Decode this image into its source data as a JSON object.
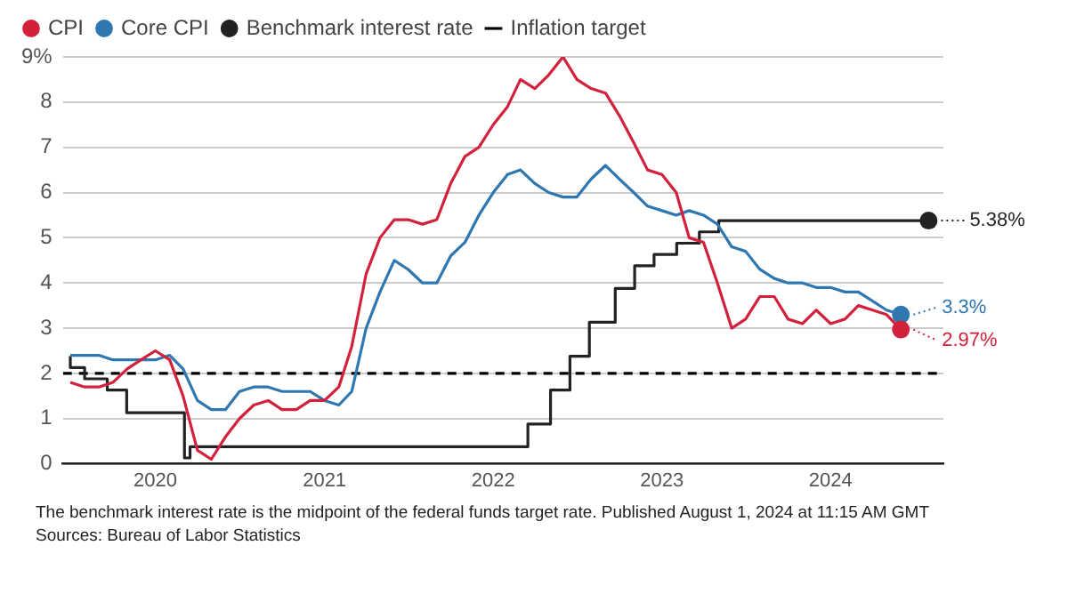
{
  "chart_data": {
    "type": "line",
    "legend": "top left",
    "grid": "y",
    "marker": "none",
    "line_style": "solid",
    "x": [
      "2019-07",
      "2019-08",
      "2019-09",
      "2019-10",
      "2019-11",
      "2019-12",
      "2020-01",
      "2020-02",
      "2020-03",
      "2020-04",
      "2020-05",
      "2020-06",
      "2020-07",
      "2020-08",
      "2020-09",
      "2020-10",
      "2020-11",
      "2020-12",
      "2021-01",
      "2021-02",
      "2021-03",
      "2021-04",
      "2021-05",
      "2021-06",
      "2021-07",
      "2021-08",
      "2021-09",
      "2021-10",
      "2021-11",
      "2021-12",
      "2022-01",
      "2022-02",
      "2022-03",
      "2022-04",
      "2022-05",
      "2022-06",
      "2022-07",
      "2022-08",
      "2022-09",
      "2022-10",
      "2022-11",
      "2022-12",
      "2023-01",
      "2023-02",
      "2023-03",
      "2023-04",
      "2023-05",
      "2023-06",
      "2023-07",
      "2023-08",
      "2023-09",
      "2023-10",
      "2023-11",
      "2023-12",
      "2024-01",
      "2024-02",
      "2024-03",
      "2024-04",
      "2024-05",
      "2024-06"
    ],
    "series": [
      {
        "name": "CPI",
        "color": "#d3213c",
        "values": [
          1.8,
          1.7,
          1.7,
          1.8,
          2.1,
          2.3,
          2.5,
          2.3,
          1.5,
          0.3,
          0.1,
          0.6,
          1.0,
          1.3,
          1.4,
          1.2,
          1.2,
          1.4,
          1.4,
          1.7,
          2.6,
          4.2,
          5.0,
          5.4,
          5.4,
          5.3,
          5.4,
          6.2,
          6.8,
          7.0,
          7.5,
          7.9,
          8.5,
          8.3,
          8.6,
          9.0,
          8.5,
          8.3,
          8.2,
          7.7,
          7.1,
          6.5,
          6.4,
          6.0,
          5.0,
          4.9,
          4.0,
          3.0,
          3.2,
          3.7,
          3.7,
          3.2,
          3.1,
          3.4,
          3.1,
          3.2,
          3.5,
          3.4,
          3.3,
          2.97
        ],
        "value_labels": [
          null,
          null,
          null,
          null,
          null,
          null,
          null,
          null,
          null,
          null,
          null,
          null,
          null,
          null,
          null,
          null,
          null,
          null,
          null,
          null,
          null,
          null,
          null,
          null,
          null,
          null,
          null,
          null,
          null,
          null,
          null,
          null,
          null,
          null,
          null,
          null,
          null,
          null,
          null,
          null,
          null,
          null,
          null,
          null,
          null,
          null,
          null,
          null,
          null,
          null,
          null,
          null,
          null,
          null,
          null,
          null,
          null,
          null,
          null,
          "2.97%"
        ]
      },
      {
        "name": "Core CPI",
        "color": "#2e77b0",
        "values": [
          2.4,
          2.4,
          2.4,
          2.3,
          2.3,
          2.3,
          2.3,
          2.4,
          2.1,
          1.4,
          1.2,
          1.2,
          1.6,
          1.7,
          1.7,
          1.6,
          1.6,
          1.6,
          1.4,
          1.3,
          1.6,
          3.0,
          3.8,
          4.5,
          4.3,
          4.0,
          4.0,
          4.6,
          4.9,
          5.5,
          6.0,
          6.4,
          6.5,
          6.2,
          6.0,
          5.9,
          5.9,
          6.3,
          6.6,
          6.3,
          6.0,
          5.7,
          5.6,
          5.5,
          5.6,
          5.5,
          5.3,
          4.8,
          4.7,
          4.3,
          4.1,
          4.0,
          4.0,
          3.9,
          3.9,
          3.8,
          3.8,
          3.6,
          3.4,
          3.3
        ],
        "value_labels": [
          null,
          null,
          null,
          null,
          null,
          null,
          null,
          null,
          null,
          null,
          null,
          null,
          null,
          null,
          null,
          null,
          null,
          null,
          null,
          null,
          null,
          null,
          null,
          null,
          null,
          null,
          null,
          null,
          null,
          null,
          null,
          null,
          null,
          null,
          null,
          null,
          null,
          null,
          null,
          null,
          null,
          null,
          null,
          null,
          null,
          null,
          null,
          null,
          null,
          null,
          null,
          null,
          null,
          null,
          null,
          null,
          null,
          null,
          null,
          "3.3%"
        ]
      },
      {
        "name": "Benchmark interest rate",
        "color": "#222222",
        "type": "step",
        "x": [
          "2019-07-01",
          "2019-08-01",
          "2019-09-19",
          "2019-10-31",
          "2020-03-04",
          "2020-03-16",
          "2022-03-17",
          "2022-05-05",
          "2022-06-16",
          "2022-07-28",
          "2022-09-22",
          "2022-11-03",
          "2022-12-15",
          "2023-02-02",
          "2023-03-23",
          "2023-05-04",
          "2023-07-27",
          "2024-07-31"
        ],
        "values": [
          2.38,
          2.13,
          1.88,
          1.63,
          1.13,
          0.13,
          0.38,
          0.88,
          1.63,
          2.38,
          3.13,
          3.88,
          4.38,
          4.63,
          4.88,
          5.13,
          5.38,
          5.38
        ],
        "value_labels": [
          null,
          null,
          null,
          null,
          null,
          null,
          null,
          null,
          null,
          null,
          null,
          null,
          null,
          null,
          null,
          null,
          null,
          "5.38%"
        ]
      }
    ],
    "ref_lines": [
      {
        "axis": "y",
        "value": 2,
        "label": "Inflation target",
        "color": "#000000",
        "line_style": "dashed"
      }
    ],
    "xlim": [
      "2019-06-15",
      "2024-09-01"
    ],
    "xticks": [
      "2020",
      "2021",
      "2022",
      "2023",
      "2024"
    ],
    "ylim": [
      0,
      9
    ],
    "yticks": [
      0,
      1,
      2,
      3,
      4,
      5,
      6,
      7,
      8,
      {
        "value": 9,
        "label": "9%"
      }
    ],
    "annotations": [
      "The benchmark interest rate is the midpoint of the federal funds target rate. Published August 1, 2024 at 11:15 AM GMT",
      "Sources: Bureau of Labor Statistics"
    ]
  }
}
